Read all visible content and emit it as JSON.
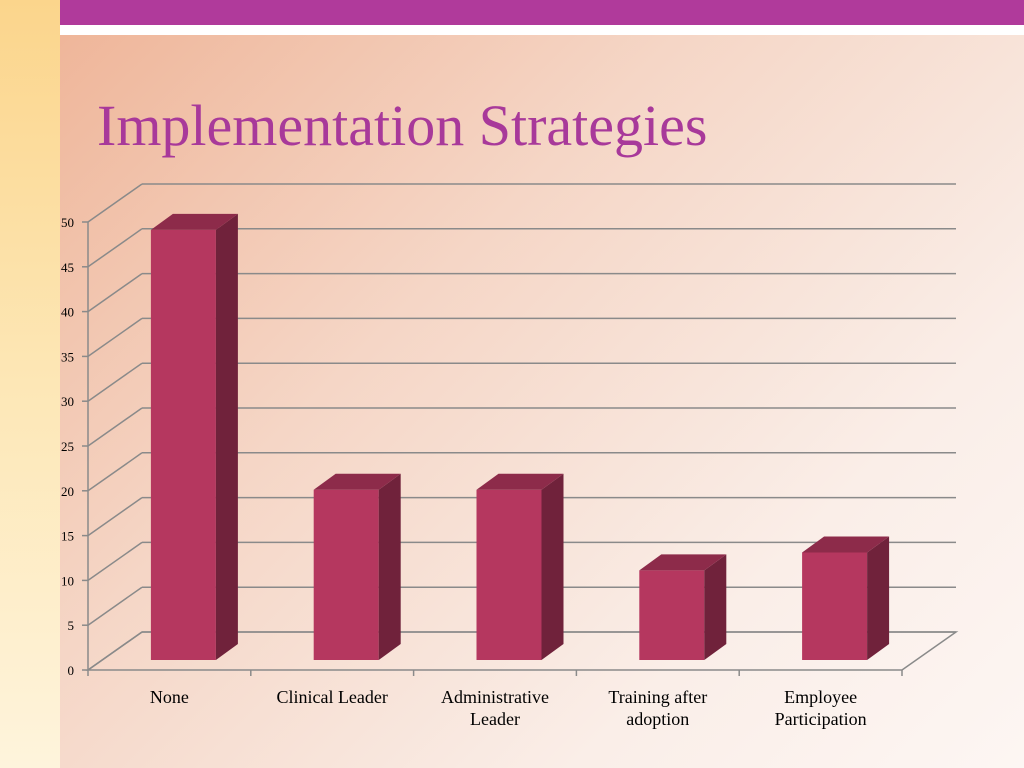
{
  "chart_data": {
    "type": "bar3d",
    "title": "Implementation Strategies",
    "categories": [
      "None",
      "Clinical Leader",
      "Administrative Leader",
      "Training after adoption",
      "Employee Participation"
    ],
    "values": [
      48,
      19,
      19,
      10,
      12
    ],
    "color": "#b5375f",
    "ylim": [
      0,
      50
    ],
    "yticks": [
      0,
      5,
      10,
      15,
      20,
      25,
      30,
      35,
      40,
      45,
      50
    ],
    "grid": true
  }
}
